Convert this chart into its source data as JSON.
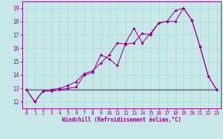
{
  "xlabel": "Windchill (Refroidissement éolien,°C)",
  "bg_color": "#c8e8e8",
  "line_color": "#990099",
  "grid_color": "#aad8d8",
  "xlim": [
    -0.5,
    23.5
  ],
  "ylim": [
    11.5,
    19.5
  ],
  "xticks": [
    0,
    1,
    2,
    3,
    4,
    5,
    6,
    7,
    8,
    9,
    10,
    11,
    12,
    13,
    14,
    15,
    16,
    17,
    18,
    19,
    20,
    21,
    22,
    23
  ],
  "yticks": [
    12,
    13,
    14,
    15,
    16,
    17,
    18,
    19
  ],
  "line1_x": [
    0,
    1,
    2,
    3,
    4,
    5,
    6,
    7,
    8,
    9,
    10,
    11,
    12,
    13,
    14,
    15,
    16,
    17,
    18,
    19,
    20,
    21,
    22,
    23
  ],
  "line1_y": [
    12.9,
    12.0,
    12.8,
    12.8,
    12.9,
    13.0,
    13.1,
    14.0,
    14.2,
    15.5,
    15.2,
    14.7,
    16.4,
    17.5,
    16.4,
    17.1,
    17.9,
    18.0,
    18.0,
    19.0,
    18.1,
    16.1,
    13.9,
    12.9
  ],
  "line2_x": [
    0,
    1,
    2,
    3,
    4,
    5,
    6,
    7,
    8,
    9,
    10,
    11,
    12,
    13,
    14,
    15,
    16,
    17,
    18,
    19,
    20,
    21,
    22,
    23
  ],
  "line2_y": [
    12.9,
    12.0,
    12.8,
    12.9,
    13.0,
    13.2,
    13.5,
    14.1,
    14.3,
    14.9,
    15.5,
    16.4,
    16.3,
    16.4,
    17.1,
    17.0,
    17.9,
    18.0,
    18.8,
    19.0,
    18.1,
    16.1,
    13.9,
    12.9
  ],
  "line3_x": [
    0,
    23
  ],
  "line3_y": [
    12.9,
    12.9
  ],
  "xlabel_fontsize": 5.5,
  "tick_fontsize": 5.0,
  "ytick_fontsize": 5.5
}
